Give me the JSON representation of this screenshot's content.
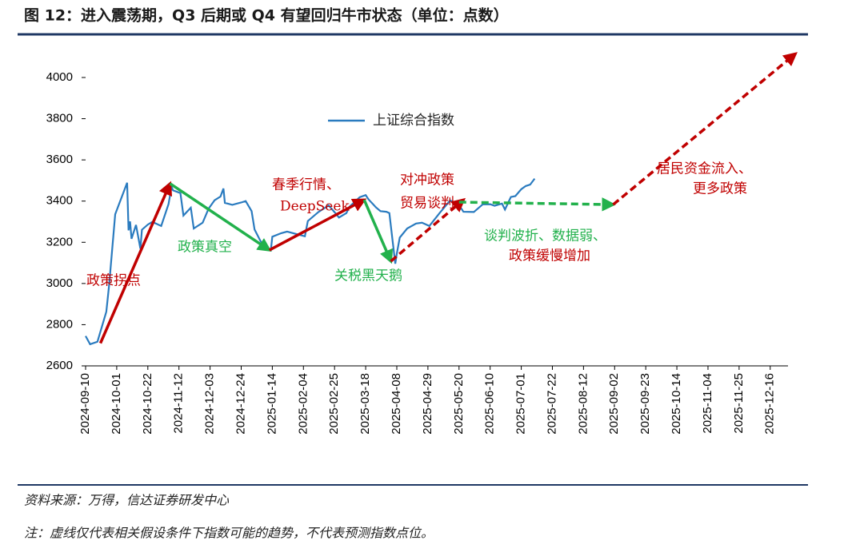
{
  "chart_data": {
    "type": "line",
    "title": "图 12：进入震荡期，Q3 后期或 Q4 有望回归牛市状态（单位：点数）",
    "source": "资料来源：万得，信达证券研发中心",
    "note": "注：虚线仅代表相关假设条件下指数可能的趋势，不代表预测指数点位。",
    "x": [
      "2024-09-10",
      "2024-09-13",
      "2024-09-18",
      "2024-09-24",
      "2024-09-26",
      "2024-09-27",
      "2024-09-30",
      "2024-10-08",
      "2024-10-09",
      "2024-10-10",
      "2024-10-11",
      "2024-10-14",
      "2024-10-17",
      "2024-10-18",
      "2024-10-22",
      "2024-10-25",
      "2024-10-31",
      "2024-11-05",
      "2024-11-07",
      "2024-11-08",
      "2024-11-13",
      "2024-11-15",
      "2024-11-20",
      "2024-11-22",
      "2024-11-28",
      "2024-12-02",
      "2024-12-06",
      "2024-12-10",
      "2024-12-12",
      "2024-12-13",
      "2024-12-18",
      "2024-12-24",
      "2024-12-27",
      "2024-12-31",
      "2025-01-02",
      "2025-01-06",
      "2025-01-10",
      "2025-01-13",
      "2025-01-14",
      "2025-01-20",
      "2025-01-24",
      "2025-02-05",
      "2025-02-07",
      "2025-02-14",
      "2025-02-21",
      "2025-02-25",
      "2025-02-28",
      "2025-03-05",
      "2025-03-07",
      "2025-03-14",
      "2025-03-18",
      "2025-03-20",
      "2025-03-25",
      "2025-03-28",
      "2025-04-01",
      "2025-04-03",
      "2025-04-07",
      "2025-04-08",
      "2025-04-10",
      "2025-04-15",
      "2025-04-21",
      "2025-04-25",
      "2025-04-30",
      "2025-05-07",
      "2025-05-14",
      "2025-05-20",
      "2025-05-23",
      "2025-05-30",
      "2025-06-05",
      "2025-06-10",
      "2025-06-13",
      "2025-06-18",
      "2025-06-20",
      "2025-06-24",
      "2025-06-27",
      "2025-07-01",
      "2025-07-04",
      "2025-07-07",
      "2025-07-10"
    ],
    "series": [
      {
        "name": "上证综合指数",
        "color": "#2a7bbf",
        "values": [
          2745,
          2705,
          2717,
          2863,
          3000,
          3087,
          3336,
          3489,
          3258,
          3301,
          3217,
          3284,
          3169,
          3261,
          3286,
          3299,
          3279,
          3386,
          3470,
          3452,
          3439,
          3330,
          3368,
          3267,
          3295,
          3363,
          3404,
          3422,
          3461,
          3391,
          3382,
          3393,
          3400,
          3351,
          3262,
          3206,
          3168,
          3160,
          3227,
          3244,
          3252,
          3229,
          3303,
          3346,
          3379,
          3346,
          3320,
          3342,
          3372,
          3419,
          3429,
          3408,
          3369,
          3351,
          3348,
          3342,
          3096,
          3145,
          3223,
          3267,
          3291,
          3295,
          3279,
          3343,
          3403,
          3381,
          3348,
          3347,
          3384,
          3385,
          3377,
          3388,
          3359,
          3420,
          3424,
          3458,
          3473,
          3480,
          3509
        ]
      }
    ],
    "xlim": [
      "2024-09-10",
      "2025-12-28"
    ],
    "xticks": [
      "2024-09-10",
      "2024-10-01",
      "2024-10-22",
      "2024-11-12",
      "2024-12-03",
      "2024-12-24",
      "2025-01-14",
      "2025-02-04",
      "2025-02-25",
      "2025-03-18",
      "2025-04-08",
      "2025-04-29",
      "2025-05-20",
      "2025-06-10",
      "2025-07-01",
      "2025-07-22",
      "2025-08-12",
      "2025-09-02",
      "2025-09-23",
      "2025-10-14",
      "2025-11-04",
      "2025-11-25",
      "2025-12-16"
    ],
    "ylim": [
      2600,
      4000
    ],
    "yticks": [
      2600,
      2800,
      3000,
      3200,
      3400,
      3600,
      3800,
      4000
    ],
    "grid": false,
    "arrows": [
      {
        "x": [
          "2024-09-20",
          "2024-11-06"
        ],
        "y": [
          2710,
          3485
        ],
        "color": "#c00000",
        "dashed": false
      },
      {
        "x": [
          "2024-11-06",
          "2025-01-12"
        ],
        "y": [
          3485,
          3162
        ],
        "color": "#22b14c",
        "dashed": false
      },
      {
        "x": [
          "2025-01-12",
          "2025-03-17"
        ],
        "y": [
          3162,
          3406
        ],
        "color": "#c00000",
        "dashed": false
      },
      {
        "x": [
          "2025-03-17",
          "2025-04-04"
        ],
        "y": [
          3406,
          3108
        ],
        "color": "#22b14c",
        "dashed": false
      },
      {
        "x": [
          "2025-04-04",
          "2025-05-23"
        ],
        "y": [
          3108,
          3406
        ],
        "color": "#c00000",
        "dashed": true
      },
      {
        "x": [
          "2025-05-20",
          "2025-09-01"
        ],
        "y": [
          3395,
          3383
        ],
        "color": "#22b14c",
        "dashed": true
      },
      {
        "x": [
          "2025-09-01",
          "2026-01-02"
        ],
        "y": [
          3383,
          4115
        ],
        "color": "#c00000",
        "dashed": true
      }
    ],
    "annotations": [
      {
        "text": "政策拐点",
        "color": "#c00000"
      },
      {
        "text": "政策真空",
        "color": "#22b14c"
      },
      {
        "text": "春季行情、",
        "color": "#c00000"
      },
      {
        "text": "DeepSeek",
        "color": "#c00000"
      },
      {
        "text": "关税黑天鹅",
        "color": "#22b14c"
      },
      {
        "text": "对冲政策",
        "color": "#c00000"
      },
      {
        "text": "贸易谈判",
        "color": "#c00000"
      },
      {
        "text": "谈判波折、数据弱、",
        "color": "#22b14c"
      },
      {
        "text": "政策缓慢增加",
        "color": "#c00000"
      },
      {
        "text": "居民资金流入、",
        "color": "#c00000"
      },
      {
        "text": "更多政策",
        "color": "#c00000"
      }
    ]
  }
}
